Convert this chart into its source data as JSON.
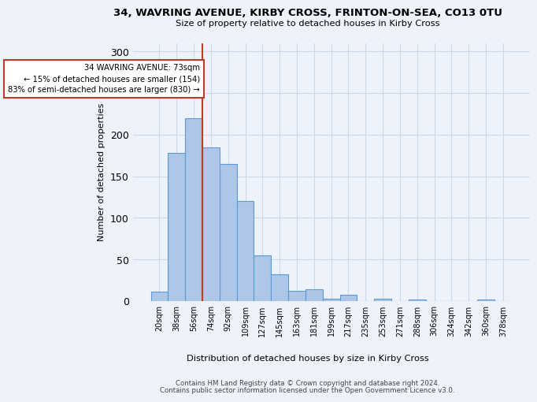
{
  "title": "34, WAVRING AVENUE, KIRBY CROSS, FRINTON-ON-SEA, CO13 0TU",
  "subtitle": "Size of property relative to detached houses in Kirby Cross",
  "xlabel": "Distribution of detached houses by size in Kirby Cross",
  "ylabel": "Number of detached properties",
  "footer_line1": "Contains HM Land Registry data © Crown copyright and database right 2024.",
  "footer_line2": "Contains public sector information licensed under the Open Government Licence v3.0.",
  "bin_labels": [
    "20sqm",
    "38sqm",
    "56sqm",
    "74sqm",
    "92sqm",
    "109sqm",
    "127sqm",
    "145sqm",
    "163sqm",
    "181sqm",
    "199sqm",
    "217sqm",
    "235sqm",
    "253sqm",
    "271sqm",
    "288sqm",
    "306sqm",
    "324sqm",
    "342sqm",
    "360sqm",
    "378sqm"
  ],
  "bar_values": [
    11,
    178,
    220,
    185,
    165,
    120,
    55,
    32,
    12,
    14,
    3,
    8,
    0,
    3,
    0,
    2,
    0,
    0,
    0,
    2,
    0
  ],
  "bar_color": "#aec6e8",
  "bar_edge_color": "#5b9bd5",
  "ylim": [
    0,
    310
  ],
  "yticks": [
    0,
    50,
    100,
    150,
    200,
    250,
    300
  ],
  "property_bin_index": 2,
  "vline_color": "#c0392b",
  "annotation_text": "34 WAVRING AVENUE: 73sqm\n← 15% of detached houses are smaller (154)\n83% of semi-detached houses are larger (830) →",
  "annotation_box_color": "#ffffff",
  "annotation_box_edge_color": "#c0392b",
  "grid_color": "#d0d8e8",
  "background_color": "#eef2fa"
}
